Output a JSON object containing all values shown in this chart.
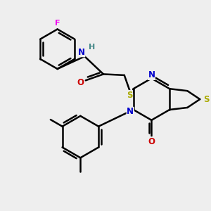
{
  "bg_color": "#eeeeee",
  "atom_colors": {
    "C": "#000000",
    "N": "#0000cc",
    "O": "#cc0000",
    "S": "#aaaa00",
    "F": "#ee00ee",
    "H": "#448888"
  },
  "bond_color": "#000000",
  "bond_width": 1.8,
  "figsize": [
    3.0,
    3.0
  ],
  "dpi": 100
}
